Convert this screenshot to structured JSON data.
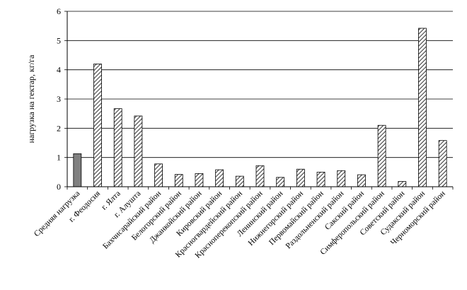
{
  "chart_data": {
    "type": "bar",
    "title": "",
    "xlabel": "",
    "ylabel": "нагрузка на гектар, кг/га",
    "ylim": [
      0,
      6
    ],
    "yticks": [
      0,
      1,
      2,
      3,
      4,
      5,
      6
    ],
    "grid": true,
    "legend": "none",
    "categories": [
      "Средняя нагрузка",
      "г. Феодосия",
      "г. Ялта",
      "г. Алушта",
      "Бахчисарайский район",
      "Белогорский район",
      "Джанкойский район",
      "Кировский район",
      "Красногвардейский район",
      "Красноперекопский район",
      "Ленинский район",
      "Нижнегорский район",
      "Первомайский район",
      "Раздольненский район",
      "Сакский район",
      "Симферопольский район",
      "Советский район",
      "Судакский район",
      "Черноморский район"
    ],
    "values": [
      1.13,
      4.2,
      2.67,
      2.42,
      0.78,
      0.42,
      0.45,
      0.58,
      0.36,
      0.72,
      0.32,
      0.6,
      0.5,
      0.55,
      0.41,
      2.1,
      0.18,
      5.42,
      1.58
    ],
    "colors": {
      "average_fill": "#808080",
      "hatch": "#000000",
      "grid": "#000000"
    }
  }
}
